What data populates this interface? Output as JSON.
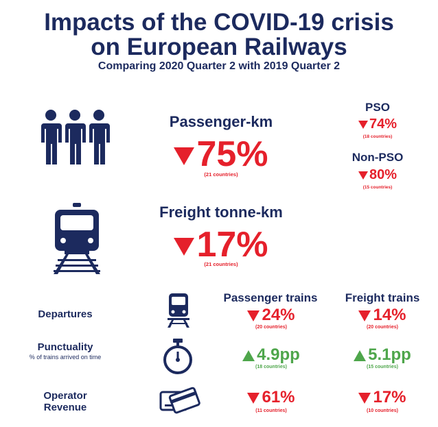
{
  "title_line1": "Impacts of the COVID-19 crisis",
  "title_line2": "on European Railways",
  "subtitle": "Comparing 2020 Quarter 2 with 2019 Quarter 2",
  "passenger": {
    "label": "Passenger-km",
    "value": "75%",
    "countries": "(21 countries)",
    "direction": "down",
    "pso": {
      "label": "PSO",
      "value": "74%",
      "countries": "(18 countries)"
    },
    "nonpso": {
      "label": "Non-PSO",
      "value": "80%",
      "countries": "(15 countries)"
    }
  },
  "freight": {
    "label": "Freight tonne-km",
    "value": "17%",
    "countries": "(21 countries)",
    "direction": "down"
  },
  "table": {
    "col_passenger": "Passenger trains",
    "col_freight": "Freight trains",
    "departures": {
      "label": "Departures",
      "passenger": {
        "value": "24%",
        "countries": "(20 countries)"
      },
      "freight": {
        "value": "14%",
        "countries": "(20 countries)"
      }
    },
    "punctuality": {
      "label": "Punctuality",
      "sublabel": "% of trains arrived on time",
      "passenger": {
        "value": "4.9pp",
        "countries": "(18 countries)"
      },
      "freight": {
        "value": "5.1pp",
        "countries": "(15 countries)"
      }
    },
    "revenue": {
      "label_line1": "Operator",
      "label_line2": "Revenue",
      "passenger": {
        "value": "61%",
        "countries": "(11 countries)"
      },
      "freight": {
        "value": "17%",
        "countries": "(10 countries)"
      }
    }
  },
  "icons": [
    "people-icon",
    "train-front-icon",
    "train-small-icon",
    "stopwatch-icon",
    "cards-icon"
  ],
  "colors": {
    "navy": "#1c2a5e",
    "red": "#e5202b",
    "green": "#4ea64b"
  }
}
